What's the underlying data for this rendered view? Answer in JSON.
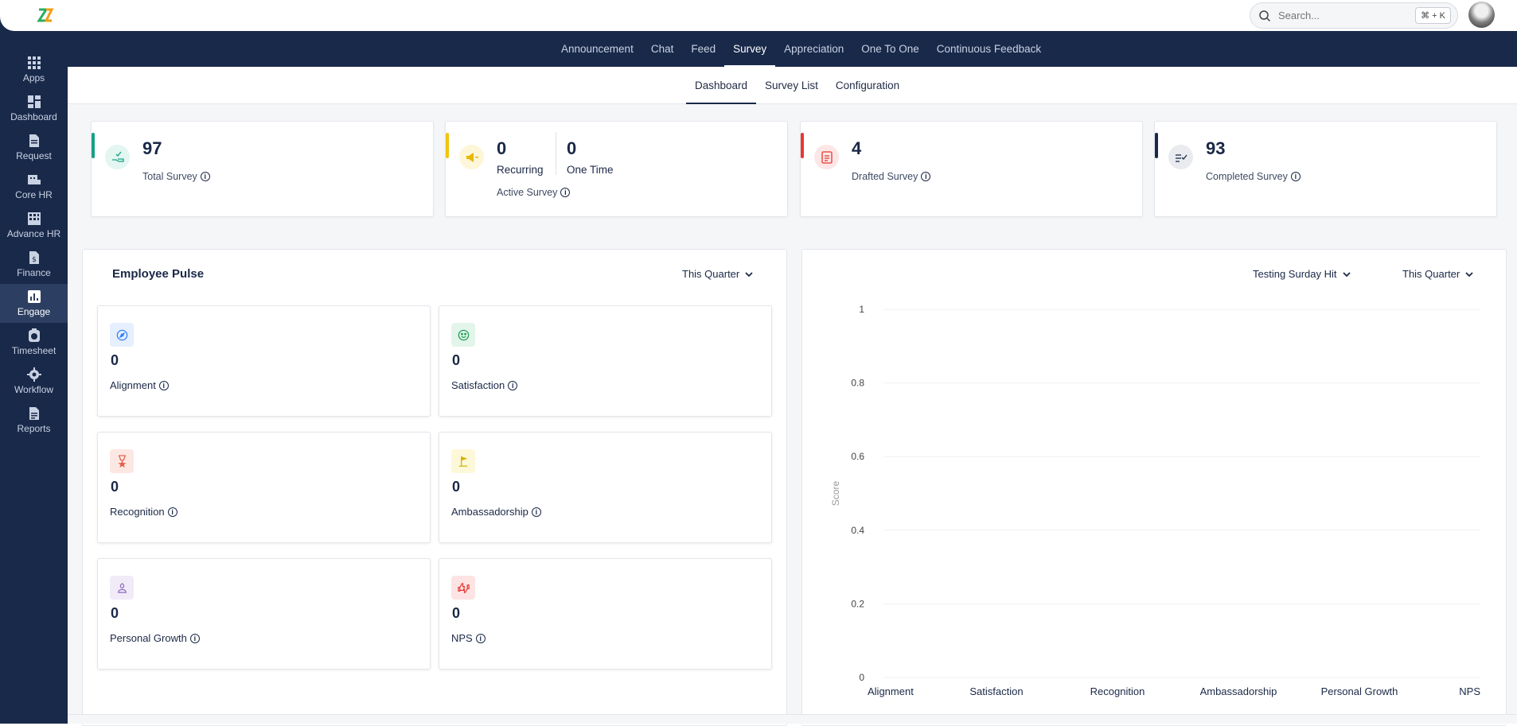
{
  "search": {
    "placeholder": "Search...",
    "shortcut": "⌘ + K"
  },
  "main_nav": [
    {
      "label": "Announcement"
    },
    {
      "label": "Chat"
    },
    {
      "label": "Feed"
    },
    {
      "label": "Survey",
      "active": true
    },
    {
      "label": "Appreciation"
    },
    {
      "label": "One To One"
    },
    {
      "label": "Continuous Feedback"
    }
  ],
  "sidebar": [
    {
      "label": "Apps",
      "icon": "apps-icon"
    },
    {
      "label": "Dashboard",
      "icon": "dashboard-icon"
    },
    {
      "label": "Request",
      "icon": "request-icon"
    },
    {
      "label": "Core HR",
      "icon": "core-hr-icon"
    },
    {
      "label": "Advance HR",
      "icon": "advance-hr-icon"
    },
    {
      "label": "Finance",
      "icon": "finance-icon"
    },
    {
      "label": "Engage",
      "icon": "engage-icon",
      "active": true
    },
    {
      "label": "Timesheet",
      "icon": "timesheet-icon"
    },
    {
      "label": "Workflow",
      "icon": "workflow-icon"
    },
    {
      "label": "Reports",
      "icon": "reports-icon"
    }
  ],
  "sub_nav": [
    {
      "label": "Dashboard",
      "active": true
    },
    {
      "label": "Survey List"
    },
    {
      "label": "Configuration"
    }
  ],
  "stats": {
    "total": {
      "value": "97",
      "label": "Total Survey",
      "color": "#16a085"
    },
    "active": {
      "recurring_value": "0",
      "recurring_label": "Recurring",
      "one_time_value": "0",
      "one_time_label": "One Time",
      "label": "Active Survey",
      "color": "#f1c40f"
    },
    "drafted": {
      "value": "4",
      "label": "Drafted Survey",
      "color": "#e53935"
    },
    "completed": {
      "value": "93",
      "label": "Completed Survey",
      "color": "#19294a"
    }
  },
  "pulse": {
    "title": "Employee Pulse",
    "period": "This Quarter",
    "cards": [
      {
        "label": "Alignment",
        "value": "0",
        "icon": "compass-icon",
        "color": "#3b82f6"
      },
      {
        "label": "Satisfaction",
        "value": "0",
        "icon": "smile-icon",
        "color": "#22a05a"
      },
      {
        "label": "Recognition",
        "value": "0",
        "icon": "medal-icon",
        "color": "#e0604a"
      },
      {
        "label": "Ambassadorship",
        "value": "0",
        "icon": "flag-icon",
        "color": "#d4b106"
      },
      {
        "label": "Personal Growth",
        "value": "0",
        "icon": "growth-icon",
        "color": "#8e6bbf"
      },
      {
        "label": "NPS",
        "value": "0",
        "icon": "thumbs-icon",
        "color": "#e53935"
      }
    ]
  },
  "chart_panel": {
    "survey_filter": "Testing Surday Hit",
    "period": "This Quarter"
  },
  "chart_data": {
    "type": "bar",
    "categories": [
      "Alignment",
      "Satisfaction",
      "Recognition",
      "Ambassadorship",
      "Personal Growth",
      "NPS"
    ],
    "values": [
      0,
      0,
      0,
      0,
      0,
      0
    ],
    "ylabel": "Score",
    "ylim": [
      0,
      1
    ],
    "yticks": [
      "1",
      "0.8",
      "0.6",
      "0.4",
      "0.2",
      "0"
    ],
    "grid": true
  }
}
